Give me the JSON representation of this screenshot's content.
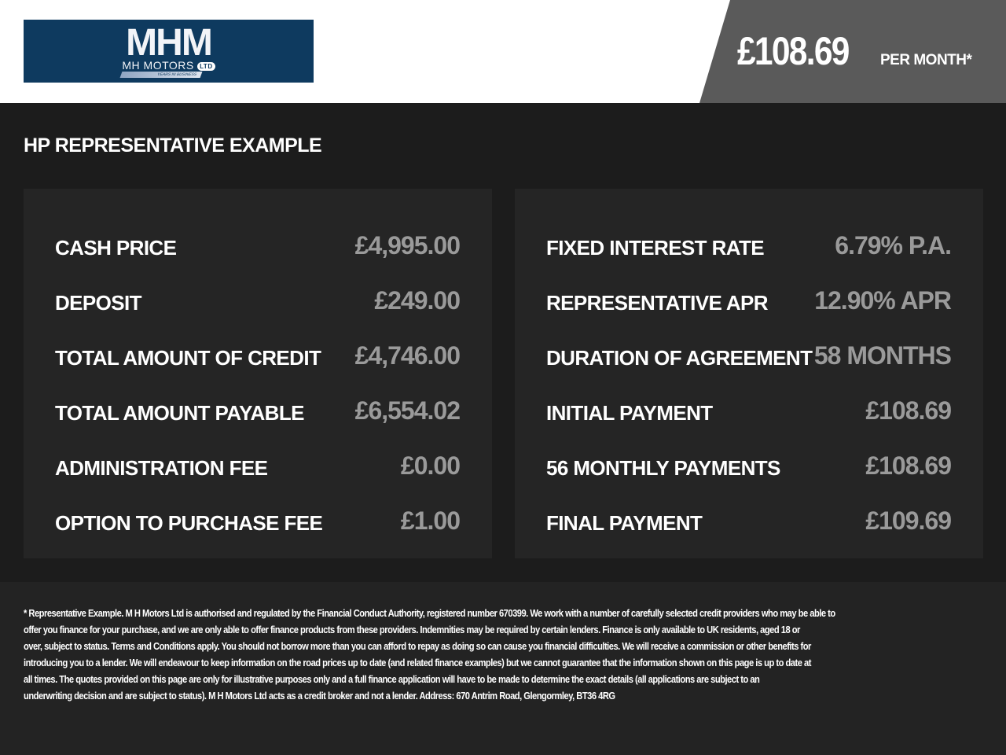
{
  "logo": {
    "monogram": "MHM",
    "name": "MH MOTORS",
    "ltd": "LTD",
    "tagline": "YEARS IN BUSINESS",
    "bg_color": "#0e3a5f"
  },
  "header": {
    "monthly_price": "£108.69",
    "per_month_label": "PER MONTH*"
  },
  "section_title": "HP REPRESENTATIVE EXAMPLE",
  "left_panel": [
    {
      "label": "CASH PRICE",
      "value": "£4,995.00"
    },
    {
      "label": "DEPOSIT",
      "value": "£249.00"
    },
    {
      "label": "TOTAL AMOUNT OF CREDIT",
      "value": "£4,746.00"
    },
    {
      "label": "TOTAL AMOUNT PAYABLE",
      "value": "£6,554.02"
    },
    {
      "label": "ADMINISTRATION FEE",
      "value": "£0.00"
    },
    {
      "label": "OPTION TO PURCHASE FEE",
      "value": "£1.00"
    }
  ],
  "right_panel": [
    {
      "label": "FIXED INTEREST RATE",
      "value": "6.79% P.A."
    },
    {
      "label": "REPRESENTATIVE APR",
      "value": "12.90% APR"
    },
    {
      "label": "DURATION OF AGREEMENT",
      "value": "58 MONTHS"
    },
    {
      "label": "INITIAL PAYMENT",
      "value": "£108.69"
    },
    {
      "label": "56 MONTHLY PAYMENTS",
      "value": "£108.69"
    },
    {
      "label": "FINAL PAYMENT",
      "value": "£109.69"
    }
  ],
  "disclaimer_lines": [
    "* Representative Example. M H Motors Ltd is authorised and regulated by the Financial Conduct Authority, registered number 670399. We work with a number of carefully selected credit providers who may be able to",
    "offer you finance for your purchase, and we are only able to offer finance products from these providers. Indemnities may be required by certain lenders. Finance is only available to UK residents, aged 18 or",
    "over, subject to status. Terms and Conditions apply. You should not borrow more than you can afford to repay as doing so can cause you financial difficulties. We will receive a commission or other benefits for",
    "introducing you to a lender. We will endeavour to keep information on the road prices up to date (and related finance examples) but we cannot guarantee that the information shown on this page is up to date at",
    "all times. The quotes provided on this page are only for illustrative purposes only and a full finance application will have to be made to determine the exact details (all applications are subject to an",
    "underwriting decision and are subject to status). M H Motors Ltd acts as a credit broker and not a lender. Address: 670 Antrim Road, Glengormley, BT36 4RG"
  ]
}
